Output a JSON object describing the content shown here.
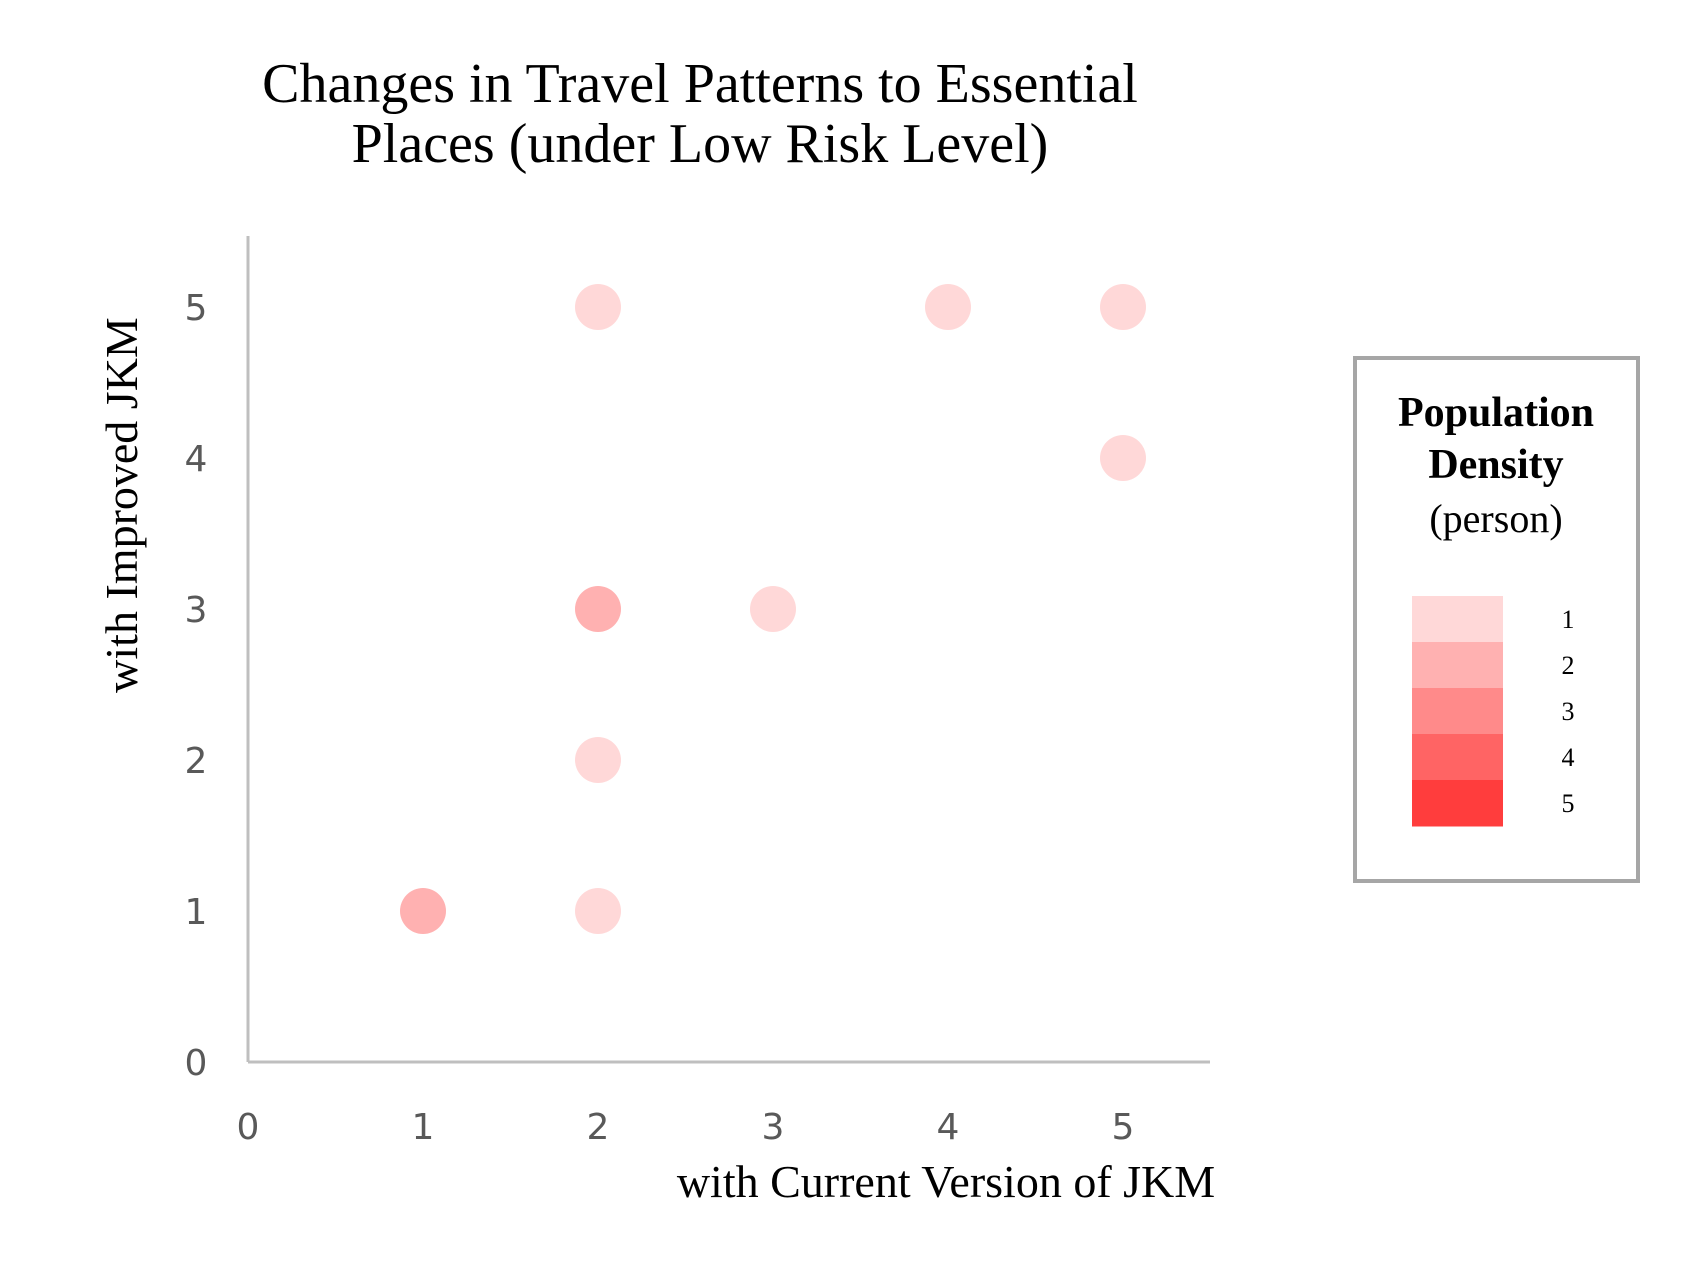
{
  "chart_data": {
    "type": "scatter",
    "title_lines": [
      "Changes in Travel Patterns to Essential",
      "Places (under Low Risk Level)"
    ],
    "xlabel": "with Current Version of JKM",
    "ylabel": "with Improved JKM",
    "xlim": [
      0,
      5.5
    ],
    "ylim": [
      0,
      5.5
    ],
    "x_ticks": [
      "0",
      "1",
      "2",
      "3",
      "4",
      "5"
    ],
    "y_ticks": [
      "0",
      "1",
      "2",
      "3",
      "4",
      "5"
    ],
    "grid": false,
    "points": [
      {
        "x": 1,
        "y": 1,
        "count": 2
      },
      {
        "x": 2,
        "y": 1,
        "count": 1
      },
      {
        "x": 2,
        "y": 2,
        "count": 1
      },
      {
        "x": 2,
        "y": 3,
        "count": 2
      },
      {
        "x": 3,
        "y": 3,
        "count": 1
      },
      {
        "x": 2,
        "y": 5,
        "count": 1
      },
      {
        "x": 4,
        "y": 5,
        "count": 1
      },
      {
        "x": 5,
        "y": 5,
        "count": 1
      },
      {
        "x": 5,
        "y": 4,
        "count": 1
      }
    ],
    "legend": {
      "placement": "right",
      "title_bold_lines": [
        "Population",
        "Density"
      ],
      "title_unit": "(person)",
      "entries": [
        {
          "value": "1",
          "color": "#ffd8d8"
        },
        {
          "value": "2",
          "color": "#ffb1b1"
        },
        {
          "value": "3",
          "color": "#ff8a8a"
        },
        {
          "value": "4",
          "color": "#ff6464"
        },
        {
          "value": "5",
          "color": "#ff3d3d"
        }
      ]
    }
  }
}
